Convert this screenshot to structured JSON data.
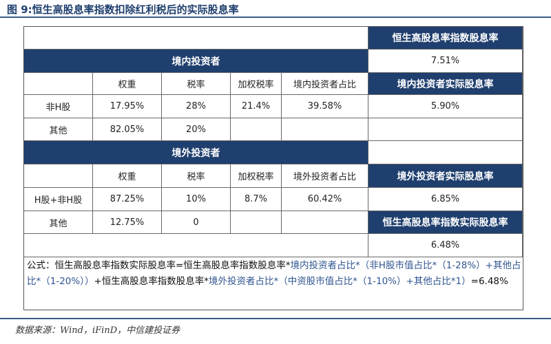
{
  "figure_title": "图 9:恒生高股息率指数扣除红利税后的实际股息率",
  "index_yield": {
    "label": "恒生高股息率指数股息率",
    "value": "7.51%"
  },
  "domestic": {
    "section_label": "境内投资者",
    "headers": [
      "权重",
      "税率",
      "加权税率",
      "境内投资者占比"
    ],
    "rows": [
      {
        "name": "非H股",
        "weight": "17.95%",
        "tax_rate": "28%",
        "weighted_tax": "21.4%",
        "share": "39.58%"
      },
      {
        "name": "其他",
        "weight": "82.05%",
        "tax_rate": "20%",
        "weighted_tax": "",
        "share": ""
      }
    ],
    "actual_yield_label": "境内投资者实际股息率",
    "actual_yield_value": "5.90%"
  },
  "foreign": {
    "section_label": "境外投资者",
    "headers": [
      "权重",
      "税率",
      "加权税率",
      "境外投资者占比"
    ],
    "rows": [
      {
        "name": "H股+非H股",
        "weight": "87.25%",
        "tax_rate": "10%",
        "weighted_tax": "8.7%",
        "share": "60.42%"
      },
      {
        "name": "其他",
        "weight": "12.75%",
        "tax_rate": "0",
        "weighted_tax": "",
        "share": ""
      }
    ],
    "actual_yield_label": "境外投资者实际股息率",
    "actual_yield_value": "6.85%"
  },
  "index_actual_yield": {
    "label": "恒生高股息率指数实际股息率",
    "value": "6.48%"
  },
  "formula": {
    "p1": "公式：恒生高股息率指数实际股息率=恒生高股息率指数股息率*",
    "p2": "境内投资者占比*（非H股市值占比*（1-28%）+其他占比*（1-20%））",
    "p3": "+恒生高股息率指数股息率*",
    "p4": "境外投资者占比*（中资股市值占比*（1-10%）+其他占比*1）",
    "p5": "=6.48%"
  },
  "source": "数据来源：Wind，iFinD，中信建投证券"
}
